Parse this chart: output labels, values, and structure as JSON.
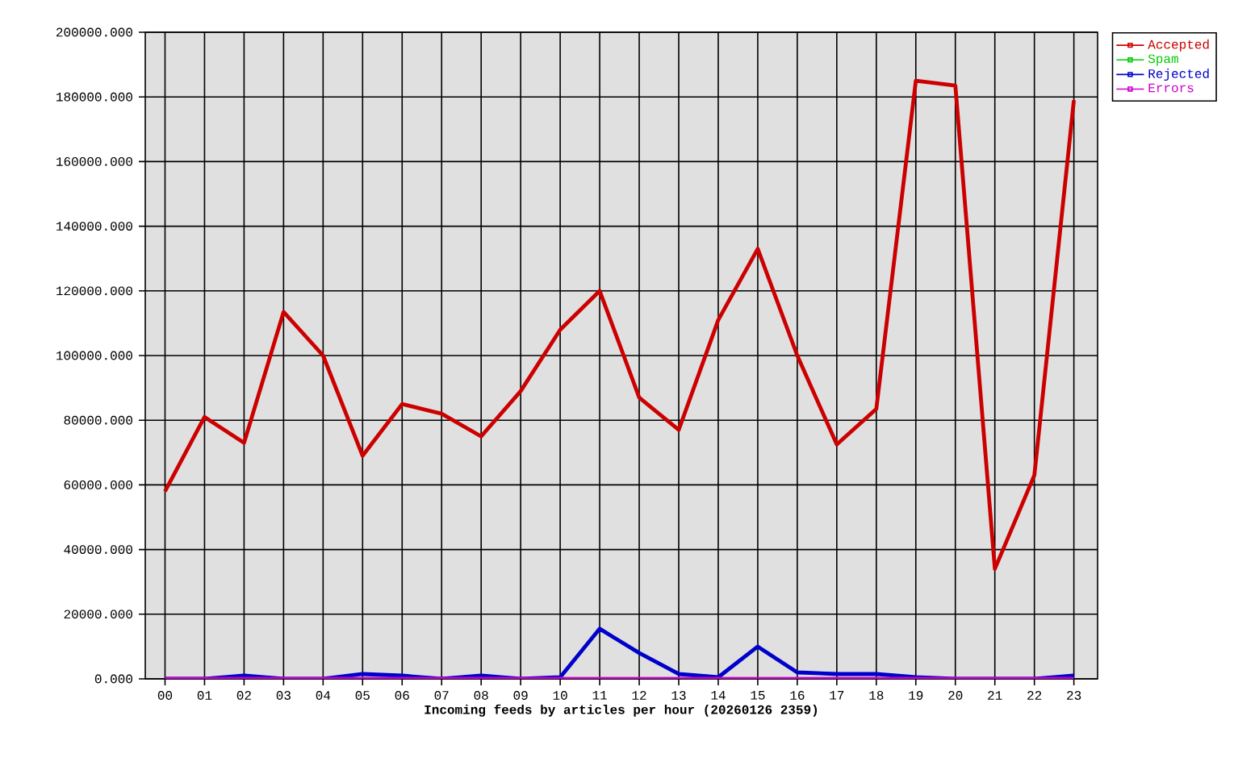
{
  "chart_data": {
    "type": "line",
    "xlabel": "Incoming feeds by articles per hour (20260126 2359)",
    "categories": [
      "00",
      "01",
      "02",
      "03",
      "04",
      "05",
      "06",
      "07",
      "08",
      "09",
      "10",
      "11",
      "12",
      "13",
      "14",
      "15",
      "16",
      "17",
      "18",
      "19",
      "20",
      "21",
      "22",
      "23"
    ],
    "series": [
      {
        "name": "Accepted",
        "color": "#cc0000",
        "values": [
          58000,
          81000,
          73000,
          113500,
          100000,
          69000,
          85000,
          82000,
          75000,
          89000,
          108000,
          120000,
          87000,
          77000,
          111000,
          133000,
          100000,
          72500,
          83500,
          185000,
          183500,
          34000,
          63000,
          179000
        ]
      },
      {
        "name": "Spam",
        "color": "#00cc00",
        "values": [
          null,
          null,
          null,
          null,
          null,
          null,
          null,
          null,
          null,
          null,
          null,
          null,
          null,
          null,
          null,
          null,
          null,
          null,
          null,
          null,
          null,
          null,
          null,
          null
        ]
      },
      {
        "name": "Rejected",
        "color": "#0000cc",
        "values": [
          0,
          0,
          1000,
          0,
          0,
          1500,
          1000,
          0,
          1000,
          0,
          500,
          15500,
          8000,
          1500,
          500,
          10000,
          2000,
          1500,
          1500,
          500,
          0,
          0,
          0,
          1000
        ]
      },
      {
        "name": "Errors",
        "color": "#cc00cc",
        "values": [
          0,
          0,
          0,
          0,
          0,
          0,
          0,
          0,
          0,
          0,
          0,
          0,
          0,
          0,
          0,
          0,
          0,
          0,
          0,
          0,
          0,
          0,
          0,
          0
        ]
      }
    ],
    "ylim": [
      0,
      200000
    ],
    "yticks": [
      {
        "value": 0,
        "label": "0.000"
      },
      {
        "value": 20000,
        "label": "20000.000"
      },
      {
        "value": 40000,
        "label": "40000.000"
      },
      {
        "value": 60000,
        "label": "60000.000"
      },
      {
        "value": 80000,
        "label": "80000.000"
      },
      {
        "value": 100000,
        "label": "100000.000"
      },
      {
        "value": 120000,
        "label": "120000.000"
      },
      {
        "value": 140000,
        "label": "140000.000"
      },
      {
        "value": 160000,
        "label": "160000.000"
      },
      {
        "value": 180000,
        "label": "180000.000"
      },
      {
        "value": 200000,
        "label": "200000.000"
      }
    ],
    "grid": true,
    "legend": "top right",
    "marker": "none",
    "line_style": "solid"
  }
}
